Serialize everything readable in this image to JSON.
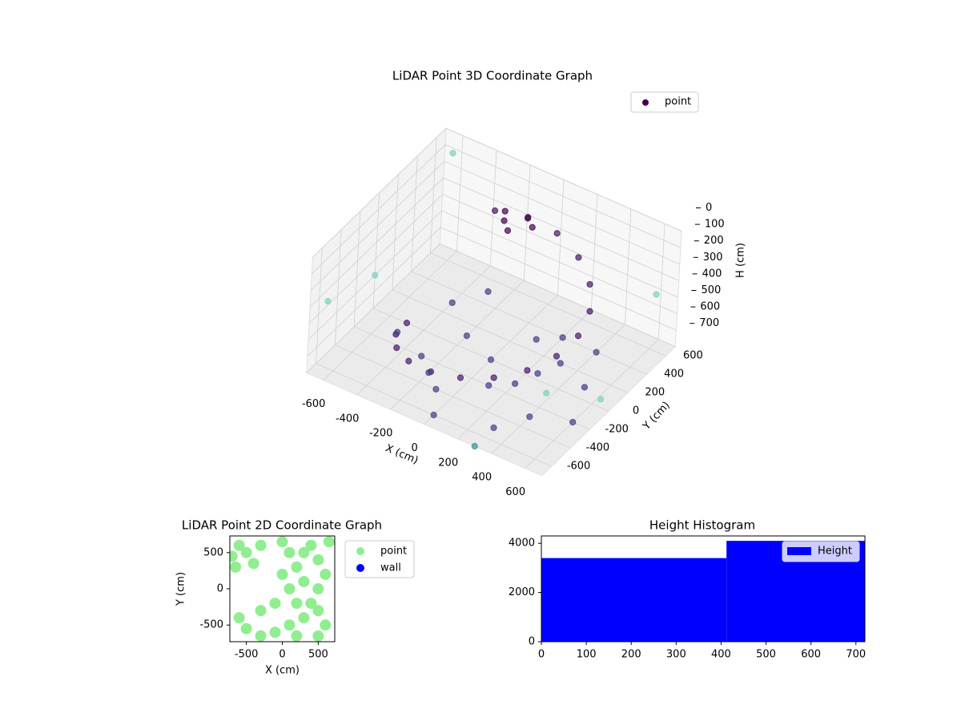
{
  "chart_data": [
    {
      "type": "scatter3d",
      "title": "LiDAR Point 3D Coordinate Graph",
      "xlabel": "X (cm)",
      "ylabel": "Y (cm)",
      "zlabel": "H (cm)",
      "xlim": [
        -700,
        700
      ],
      "ylim": [
        -700,
        700
      ],
      "hlim": [
        0,
        700
      ],
      "h_inverted": true,
      "xticks": [
        -600,
        -400,
        -200,
        0,
        200,
        400,
        600
      ],
      "yticks": [
        -600,
        -400,
        -200,
        0,
        200,
        400,
        600
      ],
      "hticks": [
        0,
        100,
        200,
        300,
        400,
        500,
        600,
        700
      ],
      "grid": true,
      "legend": "upper right",
      "series": [
        {
          "name": "point",
          "color": "#440154",
          "x": [
            -500,
            -470,
            -383,
            -250,
            -87,
            87,
            250,
            383,
            470,
            500,
            470,
            383,
            250,
            87,
            -87,
            -250,
            0,
            200,
            -200,
            300,
            -300,
            400,
            100,
            -100,
            500,
            -400,
            200,
            300,
            -500,
            0,
            600,
            -200,
            100,
            400,
            -300,
            250,
            -150,
            -50,
            -200,
            0,
            -100,
            -650,
            -600,
            600,
            700,
            -700,
            650,
            300
          ],
          "y": [
            0,
            -171,
            -321,
            -433,
            -492,
            -492,
            -433,
            -321,
            -171,
            0,
            171,
            321,
            433,
            492,
            492,
            433,
            0,
            -100,
            100,
            200,
            -200,
            -300,
            300,
            -400,
            100,
            300,
            400,
            -500,
            -100,
            -600,
            -200,
            -300,
            -200,
            400,
            500,
            50,
            350,
            420,
            450,
            380,
            300,
            -600,
            600,
            650,
            -700,
            0,
            0,
            -700
          ],
          "h": [
            700,
            660,
            619,
            578,
            537,
            496,
            456,
            415,
            374,
            333,
            293,
            252,
            211,
            170,
            150,
            150,
            700,
            700,
            700,
            700,
            700,
            700,
            700,
            700,
            700,
            700,
            700,
            700,
            700,
            700,
            700,
            700,
            700,
            700,
            700,
            700,
            120,
            100,
            140,
            110,
            130,
            300,
            50,
            400,
            200,
            500,
            650,
            700
          ],
          "colors": [
            "#48186a",
            "#48186a",
            "#48186a",
            "#48186a",
            "#48186a",
            "#48186a",
            "#48186a",
            "#48186a",
            "#48186a",
            "#48186a",
            "#48186a",
            "#48186a",
            "#48186a",
            "#48186a",
            "#48186a",
            "#48186a",
            "#433e85",
            "#433e85",
            "#433e85",
            "#433e85",
            "#433e85",
            "#433e85",
            "#433e85",
            "#433e85",
            "#433e85",
            "#433e85",
            "#433e85",
            "#433e85",
            "#433e85",
            "#433e85",
            "#433e85",
            "#433e85",
            "#433e85",
            "#433e85",
            "#433e85",
            "#433e85",
            "#440154",
            "#440154",
            "#440154",
            "#440154",
            "#440154",
            "#7ad1c0",
            "#7ad1c0",
            "#7ad1c0",
            "#7ad1c0",
            "#7ad1c0",
            "#7ad1c0",
            "#3e8a9a"
          ]
        }
      ]
    },
    {
      "type": "scatter",
      "title": "LiDAR Point 2D Coordinate Graph",
      "xlabel": "X (cm)",
      "ylabel": "Y (cm)",
      "xlim": [
        -730,
        730
      ],
      "ylim": [
        -730,
        730
      ],
      "xticks": [
        -500,
        0,
        500
      ],
      "yticks": [
        -500,
        0,
        500
      ],
      "legend": "outside right",
      "series": [
        {
          "name": "point",
          "color": "#90ee90",
          "x": [
            200,
            300,
            400,
            500,
            600,
            500,
            400,
            300,
            100,
            -100,
            -300,
            -500,
            -600,
            600,
            200,
            500,
            100,
            300,
            0,
            -100,
            200,
            -300,
            100,
            -600,
            -500,
            -650,
            -400,
            -300,
            -700,
            0,
            650,
            500
          ],
          "y": [
            300,
            500,
            600,
            400,
            200,
            0,
            -200,
            -400,
            -500,
            -600,
            -650,
            -550,
            -400,
            -500,
            -650,
            -650,
            0,
            100,
            200,
            -200,
            -200,
            -300,
            500,
            600,
            500,
            300,
            350,
            600,
            450,
            650,
            650,
            -300
          ]
        },
        {
          "name": "wall",
          "color": "#0000ff",
          "x": [],
          "y": []
        }
      ]
    },
    {
      "type": "histogram",
      "title": "Height Histogram",
      "bins": [
        0,
        412,
        720
      ],
      "counts": [
        3400,
        4100
      ],
      "xlim": [
        0,
        720
      ],
      "ylim": [
        0,
        4300
      ],
      "xticks": [
        0,
        100,
        200,
        300,
        400,
        500,
        600,
        700
      ],
      "yticks": [
        0,
        2000,
        4000
      ],
      "series_name": "Height",
      "color": "#0000ff",
      "legend": "upper right"
    }
  ]
}
